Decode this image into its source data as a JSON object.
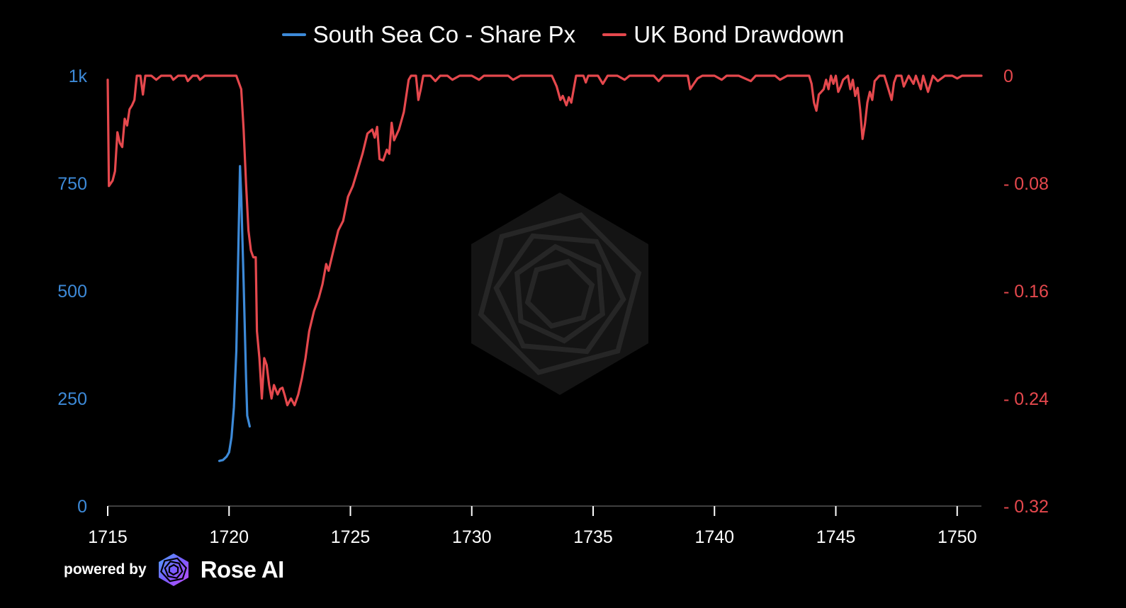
{
  "legend": {
    "series_1": "South Sea Co - Share Px",
    "series_2": "UK Bond Drawdown"
  },
  "footer": {
    "powered_by": "powered by",
    "brand": "Rose AI"
  },
  "colors": {
    "series_1": "#3d8ad8",
    "series_2": "#e5484d",
    "background": "#000000",
    "watermark": "#2a2a2a"
  },
  "chart_data": {
    "type": "line",
    "x_ticks": [
      "1715",
      "1720",
      "1725",
      "1730",
      "1735",
      "1740",
      "1745",
      "1750"
    ],
    "y_left_ticks": [
      "0",
      "250",
      "500",
      "750",
      "1k"
    ],
    "y_right_ticks": [
      "-0.32",
      "-0.24",
      "-0.16",
      "-0.08",
      "0"
    ],
    "xlim": [
      1715,
      1751
    ],
    "ylim_left": [
      0,
      1000
    ],
    "ylim_right": [
      -0.32,
      0
    ],
    "grid": false,
    "legend_position": "top-center",
    "series": [
      {
        "name": "South Sea Co - Share Px",
        "axis": "left",
        "points": [
          [
            1719.6,
            105
          ],
          [
            1719.75,
            107
          ],
          [
            1719.9,
            115
          ],
          [
            1720.0,
            125
          ],
          [
            1720.1,
            160
          ],
          [
            1720.2,
            230
          ],
          [
            1720.3,
            360
          ],
          [
            1720.4,
            650
          ],
          [
            1720.45,
            790
          ],
          [
            1720.5,
            720
          ],
          [
            1720.6,
            520
          ],
          [
            1720.7,
            300
          ],
          [
            1720.75,
            210
          ],
          [
            1720.85,
            185
          ]
        ]
      },
      {
        "name": "UK Bond Drawdown",
        "axis": "right",
        "points": [
          [
            1715.0,
            -0.003
          ],
          [
            1715.05,
            -0.082
          ],
          [
            1715.2,
            -0.078
          ],
          [
            1715.3,
            -0.071
          ],
          [
            1715.4,
            -0.042
          ],
          [
            1715.5,
            -0.05
          ],
          [
            1715.6,
            -0.053
          ],
          [
            1715.7,
            -0.032
          ],
          [
            1715.8,
            -0.037
          ],
          [
            1715.9,
            -0.025
          ],
          [
            1716.0,
            -0.022
          ],
          [
            1716.1,
            -0.018
          ],
          [
            1716.2,
            0
          ],
          [
            1716.35,
            0
          ],
          [
            1716.45,
            -0.014
          ],
          [
            1716.55,
            0
          ],
          [
            1716.8,
            0
          ],
          [
            1717.0,
            -0.003
          ],
          [
            1717.2,
            0
          ],
          [
            1717.6,
            0
          ],
          [
            1717.7,
            -0.003
          ],
          [
            1717.9,
            0
          ],
          [
            1718.2,
            0
          ],
          [
            1718.3,
            -0.004
          ],
          [
            1718.5,
            0
          ],
          [
            1718.7,
            0
          ],
          [
            1718.8,
            -0.003
          ],
          [
            1719.0,
            0
          ],
          [
            1719.5,
            0
          ],
          [
            1720.0,
            0
          ],
          [
            1720.3,
            0
          ],
          [
            1720.5,
            -0.01
          ],
          [
            1720.6,
            -0.04
          ],
          [
            1720.7,
            -0.08
          ],
          [
            1720.8,
            -0.115
          ],
          [
            1720.9,
            -0.13
          ],
          [
            1721.0,
            -0.135
          ],
          [
            1721.1,
            -0.135
          ],
          [
            1721.15,
            -0.19
          ],
          [
            1721.25,
            -0.21
          ],
          [
            1721.35,
            -0.24
          ],
          [
            1721.45,
            -0.21
          ],
          [
            1721.55,
            -0.215
          ],
          [
            1721.65,
            -0.23
          ],
          [
            1721.75,
            -0.24
          ],
          [
            1721.85,
            -0.23
          ],
          [
            1722.0,
            -0.237
          ],
          [
            1722.1,
            -0.233
          ],
          [
            1722.2,
            -0.232
          ],
          [
            1722.3,
            -0.238
          ],
          [
            1722.4,
            -0.245
          ],
          [
            1722.55,
            -0.24
          ],
          [
            1722.7,
            -0.245
          ],
          [
            1722.85,
            -0.237
          ],
          [
            1723.0,
            -0.225
          ],
          [
            1723.15,
            -0.21
          ],
          [
            1723.3,
            -0.19
          ],
          [
            1723.5,
            -0.175
          ],
          [
            1723.7,
            -0.165
          ],
          [
            1723.85,
            -0.155
          ],
          [
            1724.0,
            -0.14
          ],
          [
            1724.1,
            -0.145
          ],
          [
            1724.3,
            -0.13
          ],
          [
            1724.5,
            -0.115
          ],
          [
            1724.7,
            -0.108
          ],
          [
            1724.9,
            -0.09
          ],
          [
            1725.1,
            -0.082
          ],
          [
            1725.3,
            -0.07
          ],
          [
            1725.5,
            -0.058
          ],
          [
            1725.7,
            -0.043
          ],
          [
            1725.9,
            -0.04
          ],
          [
            1726.0,
            -0.046
          ],
          [
            1726.1,
            -0.038
          ],
          [
            1726.2,
            -0.062
          ],
          [
            1726.35,
            -0.063
          ],
          [
            1726.5,
            -0.055
          ],
          [
            1726.6,
            -0.058
          ],
          [
            1726.7,
            -0.035
          ],
          [
            1726.8,
            -0.048
          ],
          [
            1727.0,
            -0.04
          ],
          [
            1727.2,
            -0.027
          ],
          [
            1727.4,
            -0.003
          ],
          [
            1727.5,
            0
          ],
          [
            1727.7,
            0
          ],
          [
            1727.8,
            -0.018
          ],
          [
            1727.9,
            -0.01
          ],
          [
            1728.0,
            0
          ],
          [
            1728.3,
            0
          ],
          [
            1728.5,
            -0.004
          ],
          [
            1728.7,
            0
          ],
          [
            1729.0,
            0
          ],
          [
            1729.2,
            -0.003
          ],
          [
            1729.5,
            0
          ],
          [
            1730.0,
            0
          ],
          [
            1730.3,
            -0.003
          ],
          [
            1730.5,
            0
          ],
          [
            1731.0,
            0
          ],
          [
            1731.5,
            0
          ],
          [
            1731.7,
            -0.003
          ],
          [
            1732.0,
            0
          ],
          [
            1732.5,
            0
          ],
          [
            1733.0,
            0
          ],
          [
            1733.3,
            0
          ],
          [
            1733.5,
            -0.008
          ],
          [
            1733.65,
            -0.018
          ],
          [
            1733.75,
            -0.015
          ],
          [
            1733.9,
            -0.022
          ],
          [
            1734.0,
            -0.016
          ],
          [
            1734.1,
            -0.02
          ],
          [
            1734.2,
            -0.01
          ],
          [
            1734.3,
            0
          ],
          [
            1734.6,
            0
          ],
          [
            1734.7,
            -0.005
          ],
          [
            1734.8,
            0
          ],
          [
            1735.2,
            0
          ],
          [
            1735.4,
            -0.006
          ],
          [
            1735.6,
            0
          ],
          [
            1736.0,
            0
          ],
          [
            1736.3,
            -0.003
          ],
          [
            1736.5,
            0
          ],
          [
            1737.0,
            0
          ],
          [
            1737.5,
            0
          ],
          [
            1737.7,
            -0.004
          ],
          [
            1737.9,
            0
          ],
          [
            1738.5,
            0
          ],
          [
            1738.9,
            0
          ],
          [
            1739.0,
            -0.01
          ],
          [
            1739.15,
            -0.006
          ],
          [
            1739.3,
            -0.002
          ],
          [
            1739.5,
            0
          ],
          [
            1740.0,
            0
          ],
          [
            1740.3,
            -0.003
          ],
          [
            1740.5,
            0
          ],
          [
            1741.0,
            0
          ],
          [
            1741.5,
            -0.004
          ],
          [
            1741.7,
            0
          ],
          [
            1742.0,
            0
          ],
          [
            1742.5,
            0
          ],
          [
            1742.7,
            -0.003
          ],
          [
            1743.0,
            0
          ],
          [
            1743.5,
            0
          ],
          [
            1743.9,
            0
          ],
          [
            1744.0,
            -0.006
          ],
          [
            1744.1,
            -0.02
          ],
          [
            1744.2,
            -0.026
          ],
          [
            1744.3,
            -0.014
          ],
          [
            1744.4,
            -0.012
          ],
          [
            1744.5,
            -0.01
          ],
          [
            1744.6,
            -0.003
          ],
          [
            1744.7,
            -0.01
          ],
          [
            1744.8,
            0
          ],
          [
            1744.9,
            -0.006
          ],
          [
            1745.0,
            0
          ],
          [
            1745.1,
            -0.012
          ],
          [
            1745.2,
            -0.008
          ],
          [
            1745.3,
            -0.003
          ],
          [
            1745.5,
            0
          ],
          [
            1745.6,
            -0.01
          ],
          [
            1745.7,
            -0.003
          ],
          [
            1745.8,
            -0.015
          ],
          [
            1745.9,
            -0.009
          ],
          [
            1746.0,
            -0.025
          ],
          [
            1746.1,
            -0.047
          ],
          [
            1746.2,
            -0.036
          ],
          [
            1746.3,
            -0.02
          ],
          [
            1746.4,
            -0.012
          ],
          [
            1746.5,
            -0.018
          ],
          [
            1746.6,
            -0.004
          ],
          [
            1746.8,
            0
          ],
          [
            1747.0,
            0
          ],
          [
            1747.2,
            -0.012
          ],
          [
            1747.3,
            -0.018
          ],
          [
            1747.4,
            -0.005
          ],
          [
            1747.5,
            0
          ],
          [
            1747.7,
            0
          ],
          [
            1747.8,
            -0.008
          ],
          [
            1748.0,
            0
          ],
          [
            1748.2,
            -0.006
          ],
          [
            1748.3,
            0
          ],
          [
            1748.5,
            -0.01
          ],
          [
            1748.6,
            0
          ],
          [
            1748.8,
            -0.012
          ],
          [
            1749.0,
            0
          ],
          [
            1749.2,
            -0.004
          ],
          [
            1749.5,
            0
          ],
          [
            1749.8,
            0
          ],
          [
            1750.0,
            -0.002
          ],
          [
            1750.2,
            0
          ],
          [
            1751.0,
            0
          ]
        ]
      }
    ]
  }
}
